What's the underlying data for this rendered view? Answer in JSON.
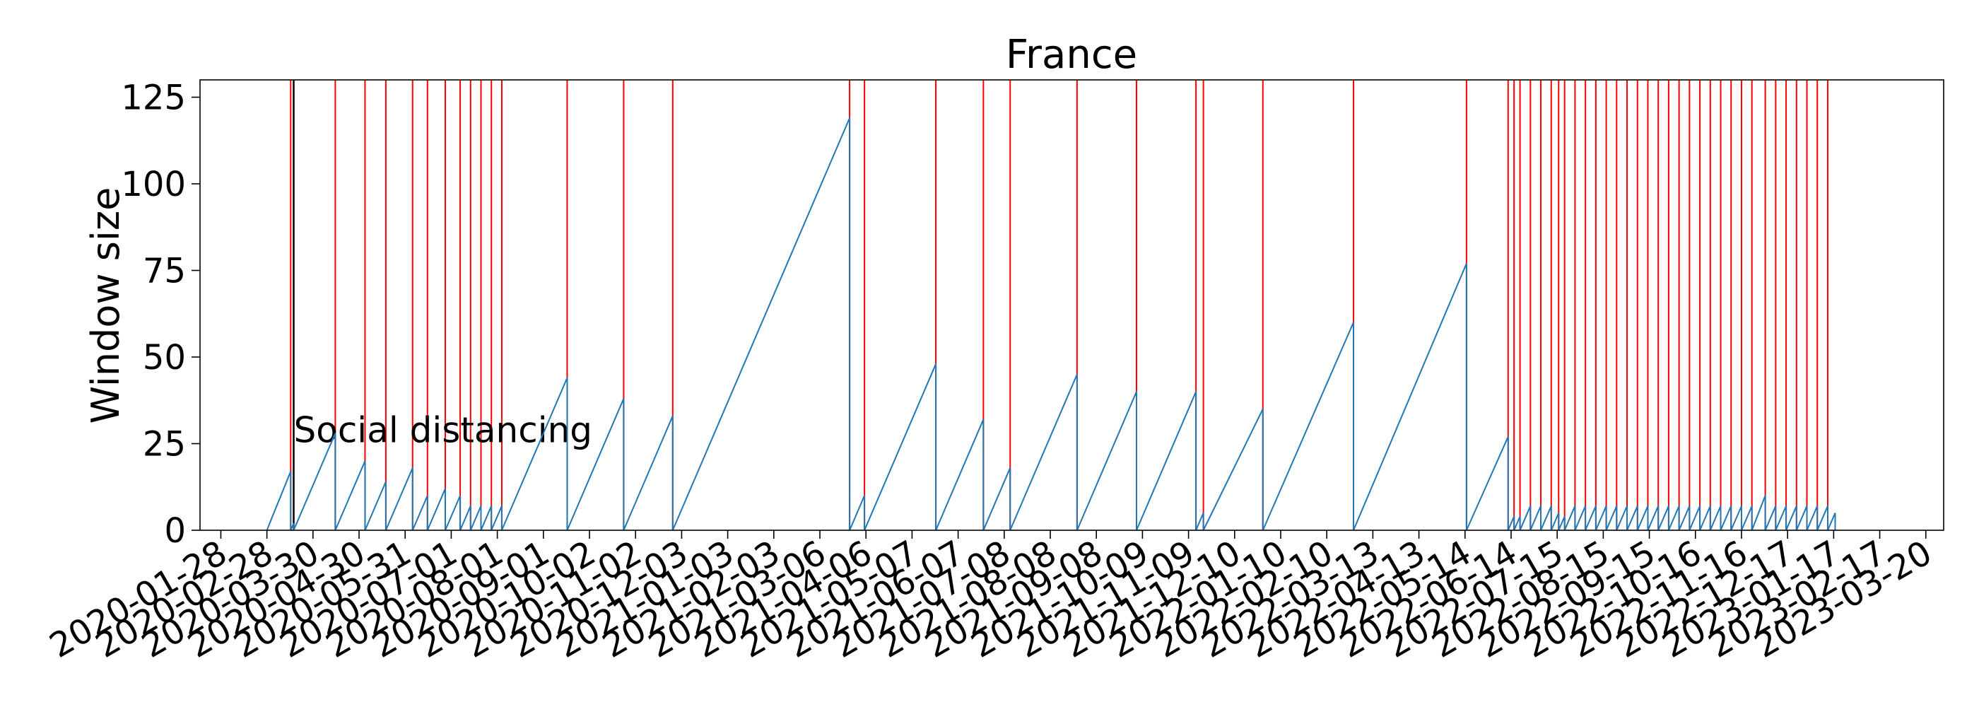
{
  "chart_data": {
    "type": "line",
    "title": "France",
    "xlabel": "",
    "ylabel": "Window size",
    "ylim": [
      0,
      130
    ],
    "xlim": [
      "2020-01-14",
      "2023-04-01"
    ],
    "yticks": [
      0,
      25,
      50,
      75,
      100,
      125
    ],
    "xticks": [
      "2020-01-28",
      "2020-02-28",
      "2020-03-30",
      "2020-04-30",
      "2020-05-31",
      "2020-07-01",
      "2020-08-01",
      "2020-09-01",
      "2020-10-02",
      "2020-11-02",
      "2020-12-03",
      "2021-01-03",
      "2021-02-03",
      "2021-03-06",
      "2021-04-06",
      "2021-05-07",
      "2021-06-07",
      "2021-07-08",
      "2021-08-08",
      "2021-09-08",
      "2021-10-09",
      "2021-11-09",
      "2021-12-10",
      "2022-01-10",
      "2022-02-10",
      "2022-03-13",
      "2022-04-13",
      "2022-05-14",
      "2022-06-14",
      "2022-07-15",
      "2022-08-15",
      "2022-09-15",
      "2022-10-16",
      "2022-11-16",
      "2022-12-17",
      "2023-01-17",
      "2023-02-17",
      "2023-03-20"
    ],
    "grid": false,
    "line_color": "#1f77b4",
    "change_point_color": "#ff0000",
    "event_line_color": "#000000",
    "series": [
      {
        "segments": [
          {
            "start": "2020-02-28",
            "end": "2020-03-15",
            "peak": 17
          },
          {
            "start": "2020-03-15",
            "end": "2020-03-17",
            "peak": 2
          },
          {
            "start": "2020-03-17",
            "end": "2020-04-14",
            "peak": 28
          },
          {
            "start": "2020-04-14",
            "end": "2020-05-04",
            "peak": 20
          },
          {
            "start": "2020-05-04",
            "end": "2020-05-18",
            "peak": 14
          },
          {
            "start": "2020-05-18",
            "end": "2020-06-05",
            "peak": 18
          },
          {
            "start": "2020-06-05",
            "end": "2020-06-15",
            "peak": 10
          },
          {
            "start": "2020-06-15",
            "end": "2020-06-27",
            "peak": 12
          },
          {
            "start": "2020-06-27",
            "end": "2020-07-07",
            "peak": 10
          },
          {
            "start": "2020-07-07",
            "end": "2020-07-14",
            "peak": 7
          },
          {
            "start": "2020-07-14",
            "end": "2020-07-21",
            "peak": 7
          },
          {
            "start": "2020-07-21",
            "end": "2020-07-28",
            "peak": 7
          },
          {
            "start": "2020-07-28",
            "end": "2020-08-04",
            "peak": 7
          },
          {
            "start": "2020-08-04",
            "end": "2020-09-17",
            "peak": 44
          },
          {
            "start": "2020-09-17",
            "end": "2020-10-25",
            "peak": 38
          },
          {
            "start": "2020-10-25",
            "end": "2020-11-27",
            "peak": 33
          },
          {
            "start": "2020-11-27",
            "end": "2021-03-26",
            "peak": 119
          },
          {
            "start": "2021-03-26",
            "end": "2021-04-05",
            "peak": 10
          },
          {
            "start": "2021-04-05",
            "end": "2021-05-23",
            "peak": 48
          },
          {
            "start": "2021-05-23",
            "end": "2021-06-24",
            "peak": 32
          },
          {
            "start": "2021-06-24",
            "end": "2021-07-12",
            "peak": 18
          },
          {
            "start": "2021-07-12",
            "end": "2021-08-26",
            "peak": 45
          },
          {
            "start": "2021-08-26",
            "end": "2021-10-05",
            "peak": 40
          },
          {
            "start": "2021-10-05",
            "end": "2021-11-14",
            "peak": 40
          },
          {
            "start": "2021-11-14",
            "end": "2021-11-19",
            "peak": 5
          },
          {
            "start": "2021-11-19",
            "end": "2021-12-29",
            "peak": 35
          },
          {
            "start": "2021-12-29",
            "end": "2022-02-28",
            "peak": 60
          },
          {
            "start": "2022-02-28",
            "end": "2022-05-15",
            "peak": 77
          },
          {
            "start": "2022-05-15",
            "end": "2022-06-12",
            "peak": 27
          },
          {
            "start": "2022-06-12",
            "end": "2022-06-16",
            "peak": 4
          },
          {
            "start": "2022-06-16",
            "end": "2022-06-20",
            "peak": 4
          },
          {
            "start": "2022-06-20",
            "end": "2022-06-27",
            "peak": 7
          },
          {
            "start": "2022-06-27",
            "end": "2022-07-04",
            "peak": 7
          },
          {
            "start": "2022-07-04",
            "end": "2022-07-11",
            "peak": 7
          },
          {
            "start": "2022-07-11",
            "end": "2022-07-16",
            "peak": 5
          },
          {
            "start": "2022-07-16",
            "end": "2022-07-20",
            "peak": 4
          },
          {
            "start": "2022-07-20",
            "end": "2022-07-27",
            "peak": 7
          },
          {
            "start": "2022-07-27",
            "end": "2022-08-03",
            "peak": 7
          },
          {
            "start": "2022-08-03",
            "end": "2022-08-10",
            "peak": 7
          },
          {
            "start": "2022-08-10",
            "end": "2022-08-17",
            "peak": 7
          },
          {
            "start": "2022-08-17",
            "end": "2022-08-24",
            "peak": 7
          },
          {
            "start": "2022-08-24",
            "end": "2022-08-31",
            "peak": 7
          },
          {
            "start": "2022-08-31",
            "end": "2022-09-07",
            "peak": 7
          },
          {
            "start": "2022-09-07",
            "end": "2022-09-14",
            "peak": 7
          },
          {
            "start": "2022-09-14",
            "end": "2022-09-21",
            "peak": 7
          },
          {
            "start": "2022-09-21",
            "end": "2022-09-28",
            "peak": 7
          },
          {
            "start": "2022-09-28",
            "end": "2022-10-05",
            "peak": 7
          },
          {
            "start": "2022-10-05",
            "end": "2022-10-12",
            "peak": 7
          },
          {
            "start": "2022-10-12",
            "end": "2022-10-19",
            "peak": 7
          },
          {
            "start": "2022-10-19",
            "end": "2022-10-26",
            "peak": 7
          },
          {
            "start": "2022-10-26",
            "end": "2022-11-02",
            "peak": 7
          },
          {
            "start": "2022-11-02",
            "end": "2022-11-09",
            "peak": 7
          },
          {
            "start": "2022-11-09",
            "end": "2022-11-16",
            "peak": 7
          },
          {
            "start": "2022-11-16",
            "end": "2022-11-23",
            "peak": 7
          },
          {
            "start": "2022-11-23",
            "end": "2022-12-02",
            "peak": 10
          },
          {
            "start": "2022-12-02",
            "end": "2022-12-09",
            "peak": 7
          },
          {
            "start": "2022-12-09",
            "end": "2022-12-16",
            "peak": 7
          },
          {
            "start": "2022-12-16",
            "end": "2022-12-23",
            "peak": 7
          },
          {
            "start": "2022-12-23",
            "end": "2022-12-30",
            "peak": 7
          },
          {
            "start": "2022-12-30",
            "end": "2023-01-06",
            "peak": 7
          },
          {
            "start": "2023-01-06",
            "end": "2023-01-13",
            "peak": 7
          },
          {
            "start": "2023-01-13",
            "end": "2023-01-18",
            "peak": 5
          }
        ]
      }
    ],
    "change_points": [
      "2020-03-15",
      "2020-04-14",
      "2020-05-04",
      "2020-05-18",
      "2020-06-05",
      "2020-06-15",
      "2020-06-27",
      "2020-07-07",
      "2020-07-14",
      "2020-07-21",
      "2020-07-28",
      "2020-08-04",
      "2020-09-17",
      "2020-10-25",
      "2020-11-27",
      "2021-03-26",
      "2021-04-05",
      "2021-05-23",
      "2021-06-24",
      "2021-07-12",
      "2021-08-26",
      "2021-10-05",
      "2021-11-14",
      "2021-11-19",
      "2021-12-29",
      "2022-02-28",
      "2022-05-15",
      "2022-06-12",
      "2022-06-16",
      "2022-06-20",
      "2022-06-27",
      "2022-07-04",
      "2022-07-11",
      "2022-07-16",
      "2022-07-20",
      "2022-07-27",
      "2022-08-03",
      "2022-08-10",
      "2022-08-17",
      "2022-08-24",
      "2022-08-31",
      "2022-09-07",
      "2022-09-14",
      "2022-09-21",
      "2022-09-28",
      "2022-10-05",
      "2022-10-12",
      "2022-10-19",
      "2022-10-26",
      "2022-11-02",
      "2022-11-09",
      "2022-11-16",
      "2022-11-23",
      "2022-12-02",
      "2022-12-09",
      "2022-12-16",
      "2022-12-23",
      "2022-12-30",
      "2023-01-06",
      "2023-01-13"
    ],
    "annotations": [
      {
        "text": "Social distancing",
        "date": "2020-03-17",
        "y": 25
      }
    ]
  }
}
